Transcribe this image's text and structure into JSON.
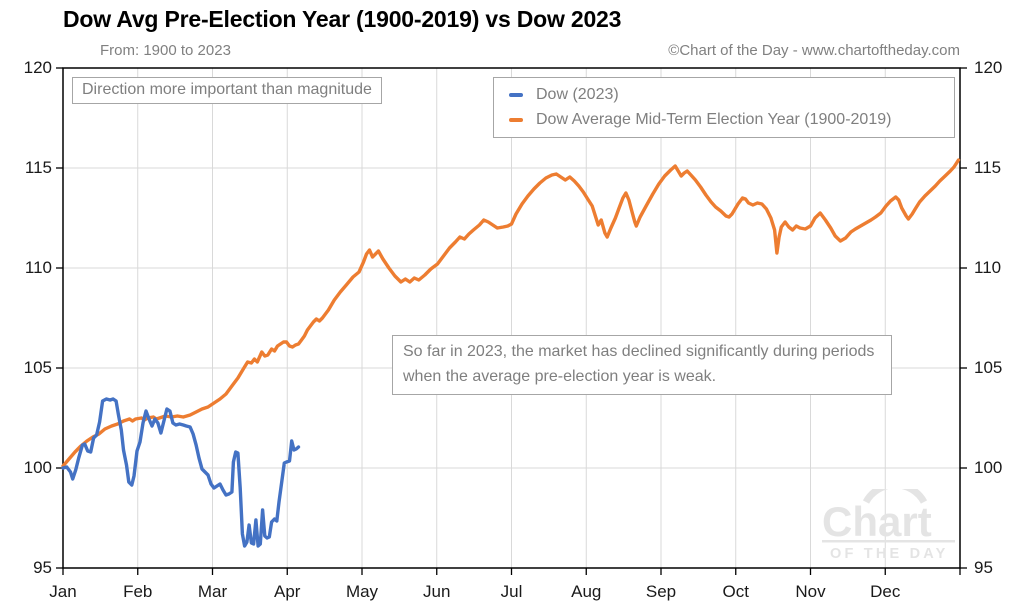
{
  "header": {
    "title": "Dow Avg Pre-Election Year (1900-2019) vs Dow 2023",
    "subtitle": "From: 1900 to 2023",
    "copyright": "©Chart of the Day - www.chartoftheday.com"
  },
  "annotations": {
    "direction": "Direction more important than magnitude",
    "so_far": "So far in 2023, the market has declined significantly during periods when the average pre-election year is weak."
  },
  "legend": [
    {
      "label": "Dow (2023)",
      "color": "#4472C4"
    },
    {
      "label": "Dow Average Mid-Term Election Year (1900-2019)",
      "color": "#ED7D31"
    }
  ],
  "watermark": {
    "line1": "Chart",
    "line2": "OF THE DAY"
  },
  "colors": {
    "blue": "#4472C4",
    "orange": "#ED7D31",
    "gridline": "#d9d9d9",
    "axis": "#000000",
    "muted_text": "#7f7f7f",
    "watermark": "#e4e4e4"
  },
  "chart_data": {
    "type": "line",
    "title": "Dow Avg Pre-Election Year (1900-2019) vs Dow 2023",
    "xlabel": "",
    "ylabel": "",
    "grid": true,
    "legend_position": "top-right",
    "x_axis": {
      "categories": [
        "Jan",
        "Feb",
        "Mar",
        "Apr",
        "May",
        "Jun",
        "Jul",
        "Aug",
        "Sep",
        "Oct",
        "Nov",
        "Dec"
      ],
      "range": [
        0,
        12
      ]
    },
    "y_axis": {
      "ticks": [
        95,
        100,
        105,
        110,
        115,
        120
      ],
      "range": [
        95,
        120
      ]
    },
    "series": [
      {
        "name": "Dow Average Mid-Term Election Year (1900-2019)",
        "color": "#ED7D31",
        "width": 3.4,
        "points": [
          [
            0.0,
            100.1
          ],
          [
            0.08,
            100.45
          ],
          [
            0.16,
            100.8
          ],
          [
            0.24,
            101.1
          ],
          [
            0.32,
            101.35
          ],
          [
            0.4,
            101.55
          ],
          [
            0.48,
            101.7
          ],
          [
            0.56,
            101.95
          ],
          [
            0.65,
            102.1
          ],
          [
            0.73,
            102.2
          ],
          [
            0.81,
            102.35
          ],
          [
            0.89,
            102.45
          ],
          [
            0.93,
            102.35
          ],
          [
            0.97,
            102.45
          ],
          [
            1.05,
            102.5
          ],
          [
            1.09,
            102.4
          ],
          [
            1.13,
            102.5
          ],
          [
            1.21,
            102.55
          ],
          [
            1.25,
            102.45
          ],
          [
            1.29,
            102.5
          ],
          [
            1.37,
            102.6
          ],
          [
            1.45,
            102.55
          ],
          [
            1.53,
            102.6
          ],
          [
            1.61,
            102.55
          ],
          [
            1.7,
            102.65
          ],
          [
            1.78,
            102.8
          ],
          [
            1.86,
            102.95
          ],
          [
            1.94,
            103.05
          ],
          [
            2.02,
            103.25
          ],
          [
            2.1,
            103.45
          ],
          [
            2.18,
            103.7
          ],
          [
            2.26,
            104.1
          ],
          [
            2.34,
            104.5
          ],
          [
            2.42,
            105.0
          ],
          [
            2.47,
            105.3
          ],
          [
            2.52,
            105.25
          ],
          [
            2.56,
            105.45
          ],
          [
            2.6,
            105.3
          ],
          [
            2.66,
            105.8
          ],
          [
            2.7,
            105.6
          ],
          [
            2.74,
            105.65
          ],
          [
            2.79,
            105.95
          ],
          [
            2.83,
            105.85
          ],
          [
            2.87,
            106.1
          ],
          [
            2.91,
            106.2
          ],
          [
            2.95,
            106.3
          ],
          [
            2.99,
            106.3
          ],
          [
            3.03,
            106.1
          ],
          [
            3.07,
            106.05
          ],
          [
            3.11,
            106.15
          ],
          [
            3.15,
            106.2
          ],
          [
            3.19,
            106.4
          ],
          [
            3.23,
            106.6
          ],
          [
            3.27,
            106.9
          ],
          [
            3.31,
            107.1
          ],
          [
            3.35,
            107.3
          ],
          [
            3.39,
            107.45
          ],
          [
            3.43,
            107.35
          ],
          [
            3.47,
            107.5
          ],
          [
            3.51,
            107.7
          ],
          [
            3.55,
            107.9
          ],
          [
            3.63,
            108.4
          ],
          [
            3.71,
            108.8
          ],
          [
            3.79,
            109.15
          ],
          [
            3.88,
            109.55
          ],
          [
            3.96,
            109.8
          ],
          [
            4.02,
            110.3
          ],
          [
            4.06,
            110.7
          ],
          [
            4.1,
            110.9
          ],
          [
            4.14,
            110.55
          ],
          [
            4.18,
            110.7
          ],
          [
            4.22,
            110.85
          ],
          [
            4.28,
            110.45
          ],
          [
            4.36,
            110.0
          ],
          [
            4.44,
            109.6
          ],
          [
            4.52,
            109.3
          ],
          [
            4.58,
            109.45
          ],
          [
            4.64,
            109.3
          ],
          [
            4.7,
            109.5
          ],
          [
            4.76,
            109.4
          ],
          [
            4.84,
            109.65
          ],
          [
            4.92,
            109.95
          ],
          [
            5.01,
            110.2
          ],
          [
            5.09,
            110.6
          ],
          [
            5.17,
            111.0
          ],
          [
            5.25,
            111.3
          ],
          [
            5.31,
            111.55
          ],
          [
            5.37,
            111.45
          ],
          [
            5.43,
            111.7
          ],
          [
            5.49,
            111.9
          ],
          [
            5.57,
            112.15
          ],
          [
            5.63,
            112.4
          ],
          [
            5.69,
            112.3
          ],
          [
            5.75,
            112.15
          ],
          [
            5.81,
            112.0
          ],
          [
            5.89,
            112.05
          ],
          [
            5.95,
            112.1
          ],
          [
            6.0,
            112.2
          ],
          [
            6.06,
            112.7
          ],
          [
            6.14,
            113.2
          ],
          [
            6.22,
            113.6
          ],
          [
            6.3,
            113.95
          ],
          [
            6.38,
            114.25
          ],
          [
            6.46,
            114.5
          ],
          [
            6.54,
            114.65
          ],
          [
            6.6,
            114.7
          ],
          [
            6.66,
            114.55
          ],
          [
            6.72,
            114.4
          ],
          [
            6.78,
            114.55
          ],
          [
            6.84,
            114.35
          ],
          [
            6.9,
            114.1
          ],
          [
            6.96,
            113.8
          ],
          [
            7.02,
            113.45
          ],
          [
            7.08,
            113.1
          ],
          [
            7.13,
            112.5
          ],
          [
            7.16,
            112.15
          ],
          [
            7.2,
            112.4
          ],
          [
            7.25,
            111.75
          ],
          [
            7.28,
            111.55
          ],
          [
            7.33,
            112.0
          ],
          [
            7.39,
            112.5
          ],
          [
            7.44,
            113.0
          ],
          [
            7.49,
            113.5
          ],
          [
            7.53,
            113.75
          ],
          [
            7.57,
            113.4
          ],
          [
            7.61,
            112.85
          ],
          [
            7.65,
            112.3
          ],
          [
            7.67,
            112.1
          ],
          [
            7.72,
            112.55
          ],
          [
            7.8,
            113.1
          ],
          [
            7.89,
            113.7
          ],
          [
            7.97,
            114.2
          ],
          [
            8.05,
            114.6
          ],
          [
            8.13,
            114.9
          ],
          [
            8.19,
            115.1
          ],
          [
            8.23,
            114.85
          ],
          [
            8.27,
            114.6
          ],
          [
            8.31,
            114.75
          ],
          [
            8.35,
            114.85
          ],
          [
            8.4,
            114.65
          ],
          [
            8.46,
            114.4
          ],
          [
            8.53,
            114.05
          ],
          [
            8.6,
            113.65
          ],
          [
            8.67,
            113.3
          ],
          [
            8.73,
            113.05
          ],
          [
            8.8,
            112.85
          ],
          [
            8.87,
            112.6
          ],
          [
            8.91,
            112.55
          ],
          [
            8.95,
            112.7
          ],
          [
            9.03,
            113.2
          ],
          [
            9.09,
            113.5
          ],
          [
            9.13,
            113.45
          ],
          [
            9.17,
            113.25
          ],
          [
            9.23,
            113.15
          ],
          [
            9.29,
            113.25
          ],
          [
            9.35,
            113.2
          ],
          [
            9.41,
            112.95
          ],
          [
            9.47,
            112.5
          ],
          [
            9.52,
            111.9
          ],
          [
            9.55,
            110.75
          ],
          [
            9.58,
            111.55
          ],
          [
            9.61,
            112.05
          ],
          [
            9.66,
            112.3
          ],
          [
            9.71,
            112.05
          ],
          [
            9.76,
            111.9
          ],
          [
            9.81,
            112.1
          ],
          [
            9.86,
            112.0
          ],
          [
            9.93,
            111.95
          ],
          [
            10.0,
            112.1
          ],
          [
            10.06,
            112.5
          ],
          [
            10.13,
            112.75
          ],
          [
            10.2,
            112.4
          ],
          [
            10.27,
            112.0
          ],
          [
            10.33,
            111.6
          ],
          [
            10.4,
            111.35
          ],
          [
            10.47,
            111.5
          ],
          [
            10.54,
            111.8
          ],
          [
            10.6,
            111.95
          ],
          [
            10.67,
            112.1
          ],
          [
            10.74,
            112.25
          ],
          [
            10.81,
            112.4
          ],
          [
            10.87,
            112.55
          ],
          [
            10.94,
            112.75
          ],
          [
            11.01,
            113.1
          ],
          [
            11.07,
            113.35
          ],
          [
            11.14,
            113.55
          ],
          [
            11.18,
            113.4
          ],
          [
            11.22,
            113.0
          ],
          [
            11.28,
            112.6
          ],
          [
            11.31,
            112.45
          ],
          [
            11.36,
            112.7
          ],
          [
            11.4,
            112.95
          ],
          [
            11.46,
            113.3
          ],
          [
            11.53,
            113.6
          ],
          [
            11.6,
            113.85
          ],
          [
            11.67,
            114.1
          ],
          [
            11.73,
            114.35
          ],
          [
            11.8,
            114.6
          ],
          [
            11.87,
            114.85
          ],
          [
            11.92,
            115.05
          ],
          [
            11.98,
            115.4
          ]
        ]
      },
      {
        "name": "Dow (2023)",
        "color": "#4472C4",
        "width": 3.4,
        "points": [
          [
            0.0,
            100.0
          ],
          [
            0.05,
            100.05
          ],
          [
            0.1,
            99.8
          ],
          [
            0.13,
            99.45
          ],
          [
            0.17,
            99.9
          ],
          [
            0.21,
            100.5
          ],
          [
            0.26,
            101.15
          ],
          [
            0.29,
            101.2
          ],
          [
            0.33,
            100.85
          ],
          [
            0.37,
            100.8
          ],
          [
            0.41,
            101.5
          ],
          [
            0.45,
            101.65
          ],
          [
            0.49,
            102.3
          ],
          [
            0.53,
            103.35
          ],
          [
            0.58,
            103.45
          ],
          [
            0.63,
            103.4
          ],
          [
            0.67,
            103.45
          ],
          [
            0.71,
            103.35
          ],
          [
            0.74,
            102.7
          ],
          [
            0.78,
            101.9
          ],
          [
            0.81,
            100.9
          ],
          [
            0.85,
            100.15
          ],
          [
            0.88,
            99.3
          ],
          [
            0.92,
            99.15
          ],
          [
            0.95,
            99.6
          ],
          [
            0.99,
            100.85
          ],
          [
            1.03,
            101.3
          ],
          [
            1.07,
            102.25
          ],
          [
            1.11,
            102.85
          ],
          [
            1.15,
            102.45
          ],
          [
            1.19,
            102.1
          ],
          [
            1.23,
            102.45
          ],
          [
            1.27,
            102.25
          ],
          [
            1.31,
            101.75
          ],
          [
            1.35,
            102.35
          ],
          [
            1.39,
            102.95
          ],
          [
            1.43,
            102.85
          ],
          [
            1.47,
            102.25
          ],
          [
            1.51,
            102.15
          ],
          [
            1.56,
            102.2
          ],
          [
            1.61,
            102.15
          ],
          [
            1.65,
            102.1
          ],
          [
            1.7,
            102.05
          ],
          [
            1.74,
            101.7
          ],
          [
            1.78,
            101.15
          ],
          [
            1.82,
            100.5
          ],
          [
            1.86,
            99.95
          ],
          [
            1.9,
            99.8
          ],
          [
            1.94,
            99.65
          ],
          [
            1.98,
            99.2
          ],
          [
            2.02,
            99.0
          ],
          [
            2.06,
            99.1
          ],
          [
            2.1,
            99.2
          ],
          [
            2.14,
            98.9
          ],
          [
            2.18,
            98.65
          ],
          [
            2.22,
            98.7
          ],
          [
            2.26,
            98.8
          ],
          [
            2.28,
            100.3
          ],
          [
            2.31,
            100.8
          ],
          [
            2.34,
            100.75
          ],
          [
            2.37,
            99.0
          ],
          [
            2.4,
            96.7
          ],
          [
            2.43,
            96.1
          ],
          [
            2.46,
            96.3
          ],
          [
            2.49,
            97.15
          ],
          [
            2.52,
            96.25
          ],
          [
            2.55,
            96.2
          ],
          [
            2.58,
            97.4
          ],
          [
            2.61,
            96.1
          ],
          [
            2.64,
            96.2
          ],
          [
            2.67,
            97.9
          ],
          [
            2.7,
            96.6
          ],
          [
            2.73,
            96.5
          ],
          [
            2.76,
            96.55
          ],
          [
            2.79,
            97.3
          ],
          [
            2.83,
            97.45
          ],
          [
            2.86,
            97.35
          ],
          [
            2.89,
            98.3
          ],
          [
            2.93,
            99.4
          ],
          [
            2.96,
            100.25
          ],
          [
            2.99,
            100.3
          ],
          [
            3.03,
            100.35
          ],
          [
            3.06,
            101.35
          ],
          [
            3.09,
            100.9
          ],
          [
            3.12,
            100.95
          ],
          [
            3.15,
            101.05
          ]
        ]
      }
    ]
  }
}
